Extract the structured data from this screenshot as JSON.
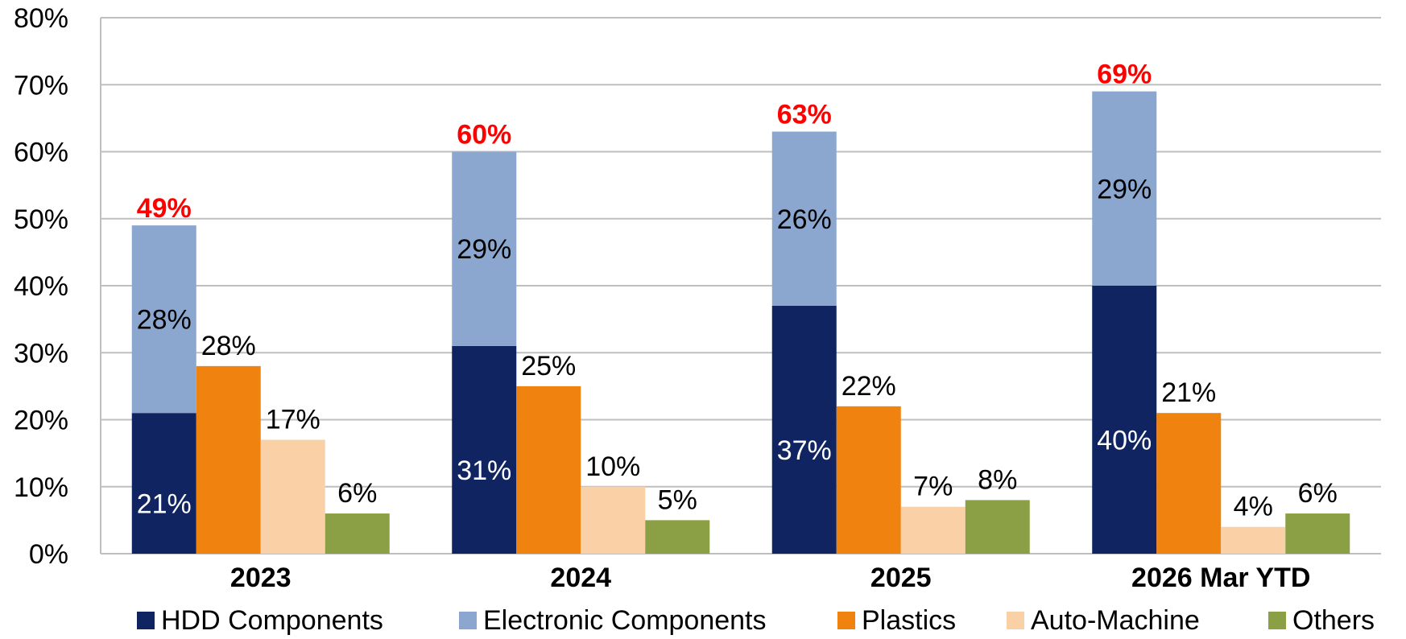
{
  "chart_data": {
    "type": "bar",
    "title": "",
    "xlabel": "",
    "ylabel": "",
    "ylim": [
      0,
      80
    ],
    "yticks": [
      "0%",
      "10%",
      "20%",
      "30%",
      "40%",
      "50%",
      "60%",
      "70%",
      "80%"
    ],
    "ytick_values": [
      0,
      10,
      20,
      30,
      40,
      50,
      60,
      70,
      80
    ],
    "grid": true,
    "legend_position": "bottom",
    "categories": [
      "2023",
      "2024",
      "2025",
      "2026 Mar YTD"
    ],
    "series": [
      {
        "name": "HDD Components",
        "color": "#0F2460",
        "values": [
          21,
          31,
          37,
          40
        ],
        "labels": [
          "21%",
          "31%",
          "37%",
          "40%"
        ],
        "stack": "hdd-electronic"
      },
      {
        "name": "Electronic Components",
        "color": "#8BA7CF",
        "values": [
          28,
          29,
          26,
          29
        ],
        "labels": [
          "28%",
          "29%",
          "26%",
          "29%"
        ],
        "stack": "hdd-electronic"
      },
      {
        "name": "Plastics",
        "color": "#F0820F",
        "values": [
          28,
          25,
          22,
          21
        ],
        "labels": [
          "28%",
          "25%",
          "22%",
          "21%"
        ]
      },
      {
        "name": "Auto-Machine",
        "color": "#FAD0A6",
        "values": [
          17,
          10,
          7,
          4
        ],
        "labels": [
          "17%",
          "10%",
          "7%",
          "4%"
        ]
      },
      {
        "name": "Others",
        "color": "#8BA045",
        "values": [
          6,
          5,
          8,
          6
        ],
        "labels": [
          "6%",
          "5%",
          "8%",
          "6%"
        ]
      }
    ],
    "stack_totals": {
      "values": [
        49,
        60,
        63,
        69
      ],
      "labels": [
        "49%",
        "60%",
        "63%",
        "69%"
      ],
      "color": "#FF0000"
    }
  }
}
